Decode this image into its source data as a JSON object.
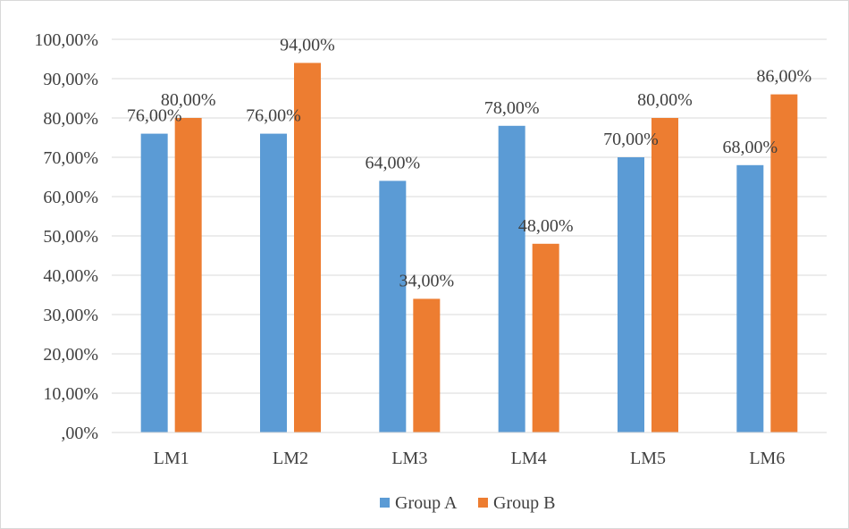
{
  "chart_data": {
    "type": "bar",
    "title": "",
    "xlabel": "",
    "ylabel": "",
    "categories": [
      "LM1",
      "LM2",
      "LM3",
      "LM4",
      "LM5",
      "LM6"
    ],
    "series": [
      {
        "name": "Group A",
        "color": "#5b9bd5",
        "values": [
          76,
          76,
          64,
          78,
          70,
          68
        ],
        "labels": [
          "76,00%",
          "76,00%",
          "64,00%",
          "78,00%",
          "70,00%",
          "68,00%"
        ]
      },
      {
        "name": "Group B",
        "color": "#ed7d31",
        "values": [
          80,
          94,
          34,
          48,
          80,
          86
        ],
        "labels": [
          "80,00%",
          "94,00%",
          "34,00%",
          "48,00%",
          "80,00%",
          "86,00%"
        ]
      }
    ],
    "ylim": [
      0,
      100
    ],
    "yticks": [
      0,
      10,
      20,
      30,
      40,
      50,
      60,
      70,
      80,
      90,
      100
    ],
    "ytick_labels": [
      ",00%",
      "10,00%",
      "20,00%",
      "30,00%",
      "40,00%",
      "50,00%",
      "60,00%",
      "70,00%",
      "80,00%",
      "90,00%",
      "100,00%"
    ],
    "grid": true,
    "gridline_color": "#d9d9d9",
    "legend_position": "bottom"
  }
}
